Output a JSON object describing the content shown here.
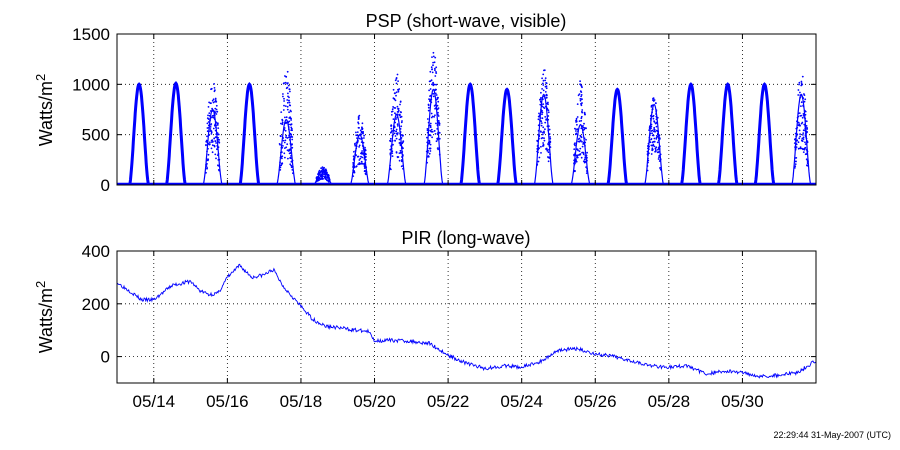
{
  "timestamp": "22:29:44 31-May-2007 (UTC)",
  "colors": {
    "series": "#0000ff",
    "axes": "#000000"
  },
  "chart_data": [
    {
      "type": "scatter",
      "title": "PSP (short-wave, visible)",
      "ylabel": "Watts/m2",
      "ylabel_parts": {
        "base": "Watts/m",
        "sup": "2"
      },
      "xlim": [
        "2007-05-13",
        "2007-06-01"
      ],
      "ylim": [
        0,
        1500
      ],
      "yticks": [
        0,
        500,
        1000,
        1500
      ],
      "grid": true,
      "xticks": [
        "2007-05-14",
        "2007-05-16",
        "2007-05-18",
        "2007-05-20",
        "2007-05-22",
        "2007-05-24",
        "2007-05-26",
        "2007-05-28",
        "2007-05-30"
      ],
      "xtick_labels": [
        "05/14",
        "05/16",
        "05/18",
        "05/20",
        "05/22",
        "05/24",
        "05/26",
        "05/28",
        "05/30"
      ],
      "daily_peaks": [
        {
          "date": "2007-05-13",
          "clear_peak": 1000,
          "max": 1000,
          "cloudy": false
        },
        {
          "date": "2007-05-14",
          "clear_peak": 1010,
          "max": 1010,
          "cloudy": false
        },
        {
          "date": "2007-05-15",
          "clear_peak": 750,
          "max": 1080,
          "cloudy": true
        },
        {
          "date": "2007-05-16",
          "clear_peak": 1000,
          "max": 1010,
          "cloudy": false
        },
        {
          "date": "2007-05-17",
          "clear_peak": 650,
          "max": 1200,
          "cloudy": true
        },
        {
          "date": "2007-05-18",
          "clear_peak": 150,
          "max": 180,
          "cloudy": true
        },
        {
          "date": "2007-05-19",
          "clear_peak": 500,
          "max": 700,
          "cloudy": true
        },
        {
          "date": "2007-05-20",
          "clear_peak": 700,
          "max": 1130,
          "cloudy": true
        },
        {
          "date": "2007-05-21",
          "clear_peak": 950,
          "max": 1350,
          "cloudy": true
        },
        {
          "date": "2007-05-22",
          "clear_peak": 1000,
          "max": 1000,
          "cloudy": false
        },
        {
          "date": "2007-05-23",
          "clear_peak": 950,
          "max": 1030,
          "cloudy": false
        },
        {
          "date": "2007-05-24",
          "clear_peak": 900,
          "max": 1180,
          "cloudy": true
        },
        {
          "date": "2007-05-25",
          "clear_peak": 600,
          "max": 1040,
          "cloudy": true
        },
        {
          "date": "2007-05-26",
          "clear_peak": 950,
          "max": 970,
          "cloudy": false
        },
        {
          "date": "2007-05-27",
          "clear_peak": 800,
          "max": 880,
          "cloudy": true
        },
        {
          "date": "2007-05-28",
          "clear_peak": 1000,
          "max": 1050,
          "cloudy": false
        },
        {
          "date": "2007-05-29",
          "clear_peak": 1000,
          "max": 1010,
          "cloudy": false
        },
        {
          "date": "2007-05-30",
          "clear_peak": 1000,
          "max": 1010,
          "cloudy": false
        },
        {
          "date": "2007-05-31",
          "clear_peak": 900,
          "max": 1130,
          "cloudy": true
        }
      ]
    },
    {
      "type": "line",
      "title": "PIR (long-wave)",
      "ylabel": "Watts/m2",
      "ylabel_parts": {
        "base": "Watts/m",
        "sup": "2"
      },
      "xlim": [
        "2007-05-13",
        "2007-06-01"
      ],
      "ylim": [
        -100,
        400
      ],
      "yticks": [
        0,
        200,
        400
      ],
      "grid": true,
      "xticks": [
        "2007-05-14",
        "2007-05-16",
        "2007-05-18",
        "2007-05-20",
        "2007-05-22",
        "2007-05-24",
        "2007-05-26",
        "2007-05-28",
        "2007-05-30"
      ],
      "xtick_labels": [
        "05/14",
        "05/16",
        "05/18",
        "05/20",
        "05/22",
        "05/24",
        "05/26",
        "05/28",
        "05/30"
      ],
      "series": [
        {
          "x": [
            "2007-05-13T00:00",
            "2007-05-13T08:00",
            "2007-05-13T16:00",
            "2007-05-14T00:00",
            "2007-05-14T12:00",
            "2007-05-15T00:00",
            "2007-05-15T06:00",
            "2007-05-15T12:00",
            "2007-05-15T18:00",
            "2007-05-16T00:00",
            "2007-05-16T08:00",
            "2007-05-16T16:00",
            "2007-05-17T00:00",
            "2007-05-17T06:00",
            "2007-05-17T12:00",
            "2007-05-17T18:00",
            "2007-05-18T00:00",
            "2007-05-18T08:00",
            "2007-05-18T16:00",
            "2007-05-19T00:00",
            "2007-05-19T12:00",
            "2007-05-19T20:00",
            "2007-05-20T00:00",
            "2007-05-20T12:00",
            "2007-05-21T00:00",
            "2007-05-21T12:00",
            "2007-05-22T00:00",
            "2007-05-22T12:00",
            "2007-05-23T00:00",
            "2007-05-23T12:00",
            "2007-05-24T00:00",
            "2007-05-24T12:00",
            "2007-05-25T00:00",
            "2007-05-25T12:00",
            "2007-05-26T00:00",
            "2007-05-26T12:00",
            "2007-05-27T00:00",
            "2007-05-27T12:00",
            "2007-05-28T00:00",
            "2007-05-28T12:00",
            "2007-05-29T00:00",
            "2007-05-29T12:00",
            "2007-05-30T00:00",
            "2007-05-30T12:00",
            "2007-05-31T00:00",
            "2007-05-31T12:00",
            "2007-06-01T00:00"
          ],
          "y": [
            280,
            250,
            215,
            215,
            270,
            285,
            250,
            235,
            240,
            300,
            345,
            300,
            310,
            330,
            270,
            230,
            190,
            140,
            115,
            110,
            100,
            95,
            60,
            62,
            58,
            50,
            5,
            -25,
            -45,
            -35,
            -40,
            -20,
            25,
            30,
            10,
            0,
            -15,
            -35,
            -40,
            -35,
            -65,
            -55,
            -60,
            -75,
            -70,
            -60,
            -15
          ]
        }
      ]
    }
  ]
}
